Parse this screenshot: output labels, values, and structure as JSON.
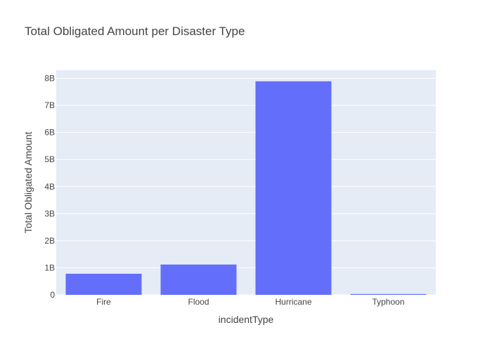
{
  "chart_data": {
    "type": "bar",
    "title": "Total Obligated Amount per Disaster Type",
    "xlabel": "incidentType",
    "ylabel": "Total Obligated Amount",
    "categories": [
      "Fire",
      "Flood",
      "Hurricane",
      "Typhoon"
    ],
    "values": [
      780000000,
      1120000000,
      7890000000,
      30000000
    ],
    "ylim": [
      0,
      8300000000
    ],
    "yticks": [
      {
        "value": 0,
        "label": "0"
      },
      {
        "value": 1000000000,
        "label": "1B"
      },
      {
        "value": 2000000000,
        "label": "2B"
      },
      {
        "value": 3000000000,
        "label": "3B"
      },
      {
        "value": 4000000000,
        "label": "4B"
      },
      {
        "value": 5000000000,
        "label": "5B"
      },
      {
        "value": 6000000000,
        "label": "6B"
      },
      {
        "value": 7000000000,
        "label": "7B"
      },
      {
        "value": 8000000000,
        "label": "8B"
      }
    ],
    "bar_color": "#636efa",
    "plot_bg": "#e5ecf6",
    "grid": true
  }
}
